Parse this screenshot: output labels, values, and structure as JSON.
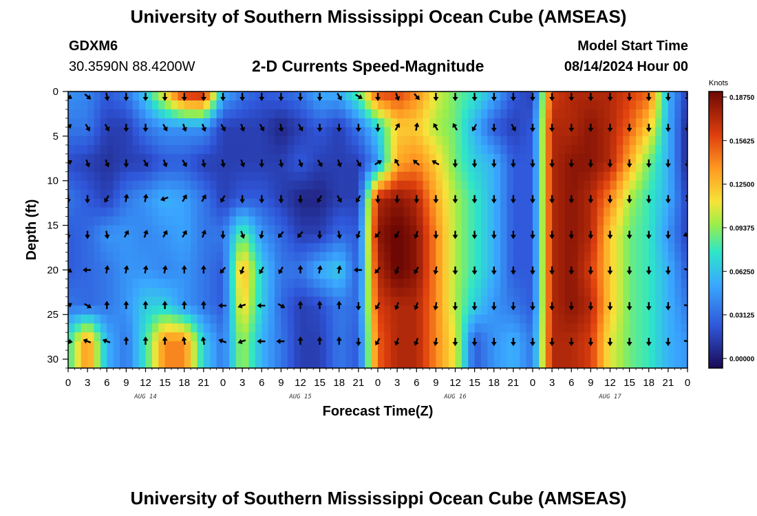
{
  "header": {
    "title_top": "University of Southern Mississippi Ocean Cube (AMSEAS)",
    "title_bottom": "University of Southern Mississippi Ocean Cube (AMSEAS)",
    "station_id": "GDXM6",
    "station_coords": "30.3590N  88.4200W",
    "subtitle": "2-D Currents Speed-Magnitude",
    "model_label": "Model Start Time",
    "model_time": "08/14/2024 Hour 00"
  },
  "chart_data": {
    "type": "heatmap",
    "title": "2-D Currents Speed-Magnitude",
    "xlabel": "Forecast Time(Z)",
    "ylabel": "Depth (ft)",
    "x_ticks": [
      "0",
      "3",
      "6",
      "9",
      "12",
      "15",
      "18",
      "21",
      "0",
      "3",
      "6",
      "9",
      "12",
      "15",
      "18",
      "21",
      "0",
      "3",
      "6",
      "9",
      "12",
      "15",
      "18",
      "21",
      "0",
      "3",
      "6",
      "9",
      "12",
      "15",
      "18",
      "21",
      "0"
    ],
    "day_labels": [
      "AUG 14",
      "AUG 15",
      "AUG 16",
      "AUG 17"
    ],
    "y_ticks": [
      "0",
      "5",
      "10",
      "15",
      "20",
      "25",
      "30"
    ],
    "ylim": [
      0,
      31
    ],
    "xlim_hours": [
      0,
      96
    ],
    "colorbar": {
      "unit": "Knots",
      "labels": [
        "0.18750",
        "0.15625",
        "0.12500",
        "0.09375",
        "0.06250",
        "0.03125",
        "0.00000"
      ],
      "range": [
        0,
        0.1875
      ]
    },
    "depths_ft": [
      0,
      4,
      8,
      12,
      16,
      20,
      24,
      28
    ],
    "hours": [
      0,
      3,
      6,
      9,
      12,
      15,
      18,
      21,
      24,
      27,
      30,
      33,
      36,
      39,
      42,
      45,
      48,
      51,
      54,
      57,
      60,
      63,
      66,
      69,
      72,
      75,
      78,
      81,
      84,
      87,
      90,
      93,
      96
    ],
    "speed_knots": [
      [
        0.05,
        0.045,
        0.03,
        0.04,
        0.07,
        0.12,
        0.17,
        0.175,
        0.06,
        0.04,
        0.03,
        0.035,
        0.04,
        0.06,
        0.06,
        0.09,
        0.16,
        0.16,
        0.14,
        0.11,
        0.09,
        0.08,
        0.06,
        0.03,
        0.02,
        0.16,
        0.17,
        0.17,
        0.17,
        0.16,
        0.15,
        0.06,
        0.02
      ],
      [
        0.04,
        0.04,
        0.02,
        0.02,
        0.04,
        0.05,
        0.05,
        0.05,
        0.02,
        0.02,
        0.02,
        0.01,
        0.02,
        0.03,
        0.02,
        0.04,
        0.07,
        0.12,
        0.12,
        0.1,
        0.09,
        0.06,
        0.03,
        0.02,
        0.03,
        0.17,
        0.17,
        0.18,
        0.17,
        0.15,
        0.12,
        0.06,
        0.01
      ],
      [
        0.025,
        0.02,
        0.015,
        0.02,
        0.02,
        0.03,
        0.03,
        0.02,
        0.02,
        0.02,
        0.02,
        0.02,
        0.03,
        0.02,
        0.02,
        0.02,
        0.05,
        0.13,
        0.14,
        0.12,
        0.09,
        0.07,
        0.06,
        0.03,
        0.03,
        0.17,
        0.18,
        0.18,
        0.17,
        0.13,
        0.09,
        0.06,
        0.01
      ],
      [
        0.04,
        0.03,
        0.02,
        0.04,
        0.05,
        0.06,
        0.055,
        0.04,
        0.02,
        0.03,
        0.03,
        0.02,
        0.01,
        0.01,
        0.02,
        0.02,
        0.17,
        0.18,
        0.17,
        0.13,
        0.1,
        0.08,
        0.06,
        0.03,
        0.03,
        0.17,
        0.18,
        0.17,
        0.14,
        0.1,
        0.08,
        0.06,
        0.02
      ],
      [
        0.03,
        0.035,
        0.05,
        0.05,
        0.045,
        0.05,
        0.055,
        0.04,
        0.04,
        0.09,
        0.05,
        0.035,
        0.02,
        0.02,
        0.035,
        0.03,
        0.18,
        0.19,
        0.18,
        0.14,
        0.1,
        0.08,
        0.06,
        0.03,
        0.03,
        0.17,
        0.18,
        0.17,
        0.12,
        0.09,
        0.08,
        0.05,
        0.02
      ],
      [
        0.03,
        0.035,
        0.04,
        0.05,
        0.05,
        0.045,
        0.05,
        0.04,
        0.03,
        0.13,
        0.07,
        0.04,
        0.04,
        0.06,
        0.07,
        0.03,
        0.17,
        0.19,
        0.18,
        0.14,
        0.1,
        0.08,
        0.06,
        0.03,
        0.03,
        0.17,
        0.18,
        0.16,
        0.12,
        0.09,
        0.08,
        0.06,
        0.03
      ],
      [
        0.04,
        0.035,
        0.04,
        0.05,
        0.07,
        0.07,
        0.05,
        0.04,
        0.03,
        0.12,
        0.07,
        0.035,
        0.02,
        0.025,
        0.04,
        0.035,
        0.16,
        0.17,
        0.17,
        0.14,
        0.1,
        0.07,
        0.05,
        0.04,
        0.03,
        0.17,
        0.18,
        0.17,
        0.12,
        0.09,
        0.08,
        0.06,
        0.04
      ],
      [
        0.08,
        0.14,
        0.06,
        0.04,
        0.08,
        0.14,
        0.14,
        0.07,
        0.04,
        0.1,
        0.06,
        0.04,
        0.02,
        0.02,
        0.04,
        0.03,
        0.15,
        0.17,
        0.17,
        0.14,
        0.11,
        0.03,
        0.05,
        0.06,
        0.04,
        0.17,
        0.17,
        0.16,
        0.11,
        0.09,
        0.08,
        0.06,
        0.05
      ]
    ],
    "arrow_angle_deg": [
      [
        330,
        320,
        280,
        270,
        270,
        270,
        270,
        270,
        270,
        270,
        270,
        270,
        270,
        270,
        300,
        330,
        270,
        290,
        310,
        270,
        270,
        270,
        270,
        270,
        270,
        270,
        270,
        270,
        270,
        270,
        270,
        270,
        280
      ],
      [
        40,
        300,
        300,
        270,
        270,
        300,
        290,
        290,
        300,
        290,
        300,
        280,
        300,
        270,
        270,
        270,
        270,
        60,
        80,
        120,
        120,
        240,
        270,
        300,
        270,
        270,
        270,
        270,
        270,
        270,
        270,
        270,
        270
      ],
      [
        30,
        290,
        290,
        270,
        300,
        290,
        300,
        280,
        280,
        290,
        270,
        280,
        290,
        300,
        290,
        300,
        30,
        120,
        140,
        150,
        270,
        270,
        270,
        270,
        270,
        270,
        270,
        270,
        270,
        270,
        270,
        270,
        270
      ],
      [
        270,
        270,
        240,
        80,
        80,
        200,
        60,
        60,
        240,
        270,
        270,
        270,
        270,
        240,
        300,
        240,
        270,
        270,
        270,
        270,
        270,
        270,
        270,
        270,
        270,
        270,
        270,
        270,
        270,
        270,
        270,
        270,
        290
      ],
      [
        270,
        270,
        280,
        60,
        70,
        60,
        60,
        70,
        270,
        290,
        260,
        230,
        230,
        270,
        280,
        250,
        230,
        240,
        250,
        270,
        270,
        270,
        270,
        270,
        270,
        270,
        270,
        270,
        270,
        270,
        270,
        270,
        200
      ],
      [
        330,
        180,
        80,
        80,
        80,
        80,
        90,
        90,
        230,
        250,
        240,
        240,
        90,
        80,
        80,
        180,
        230,
        250,
        240,
        260,
        270,
        270,
        270,
        270,
        270,
        270,
        270,
        270,
        270,
        270,
        270,
        270,
        340
      ],
      [
        30,
        330,
        90,
        90,
        90,
        90,
        90,
        90,
        180,
        200,
        180,
        330,
        90,
        90,
        90,
        270,
        240,
        250,
        250,
        260,
        270,
        270,
        270,
        270,
        270,
        270,
        270,
        270,
        270,
        270,
        270,
        270,
        350
      ],
      [
        350,
        160,
        160,
        90,
        90,
        90,
        100,
        100,
        160,
        200,
        180,
        180,
        90,
        90,
        90,
        270,
        240,
        250,
        250,
        260,
        270,
        270,
        270,
        270,
        270,
        270,
        270,
        270,
        270,
        270,
        270,
        270,
        350
      ]
    ]
  }
}
